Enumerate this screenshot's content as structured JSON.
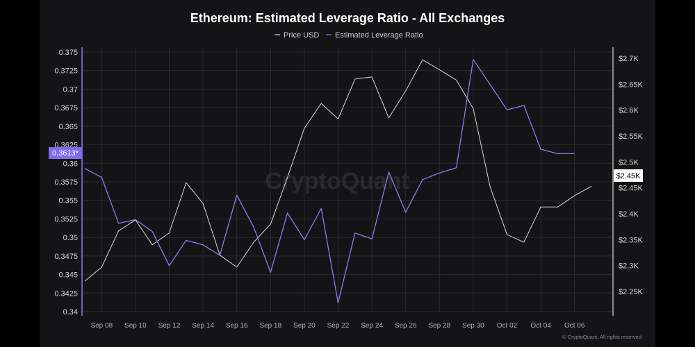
{
  "chart_data": {
    "type": "line",
    "title": "Ethereum: Estimated Leverage Ratio - All Exchanges",
    "watermark": "CryptoQuant",
    "footer": "© CryptoQuant. All rights reserved",
    "legend": [
      {
        "name": "Price USD",
        "color": "#d9d9d9"
      },
      {
        "name": "Estimated Leverage Ratio",
        "color": "#8a7cf0"
      }
    ],
    "x_tick_labels": [
      "Sep 08",
      "Sep 10",
      "Sep 12",
      "Sep 14",
      "Sep 16",
      "Sep 18",
      "Sep 20",
      "Sep 22",
      "Sep 24",
      "Sep 26",
      "Sep 28",
      "Sep 30",
      "Oct 02",
      "Oct 04",
      "Oct 06"
    ],
    "left_axis": {
      "ticks": [
        "0.375",
        "0.3725",
        "0.37",
        "0.3675",
        "0.365",
        "0.3625",
        "0.36",
        "0.3575",
        "0.355",
        "0.3525",
        "0.35",
        "0.3475",
        "0.345",
        "0.3425",
        "0.34"
      ],
      "ylim": [
        0.34,
        0.375
      ],
      "last_value_label": "0.3613*"
    },
    "right_axis": {
      "ticks": [
        "$2.7K",
        "$2.65K",
        "$2.6K",
        "$2.55K",
        "$2.5K",
        "$2.45K",
        "$2.4K",
        "$2.35K",
        "$2.3K",
        "$2.25K"
      ],
      "ylim": [
        2200,
        2700
      ],
      "last_value_label": "$2.45K"
    },
    "series": [
      {
        "name": "Estimated Leverage Ratio",
        "axis": "left",
        "color": "#8a7cf0",
        "x": [
          "Sep 07",
          "Sep 08",
          "Sep 09",
          "Sep 10",
          "Sep 11",
          "Sep 12",
          "Sep 13",
          "Sep 14",
          "Sep 15",
          "Sep 16",
          "Sep 17",
          "Sep 18",
          "Sep 19",
          "Sep 20",
          "Sep 21",
          "Sep 22",
          "Sep 23",
          "Sep 24",
          "Sep 25",
          "Sep 26",
          "Sep 27",
          "Sep 28",
          "Sep 29",
          "Sep 30",
          "Oct 01",
          "Oct 02",
          "Oct 03",
          "Oct 04",
          "Oct 05",
          "Oct 06"
        ],
        "values": [
          0.3593,
          0.3581,
          0.3519,
          0.3524,
          0.3508,
          0.3462,
          0.3496,
          0.349,
          0.3476,
          0.3557,
          0.3514,
          0.3453,
          0.3533,
          0.3497,
          0.3539,
          0.3412,
          0.3506,
          0.3498,
          0.3588,
          0.3534,
          0.3578,
          0.3587,
          0.3594,
          0.374,
          0.3706,
          0.3672,
          0.3678,
          0.3619,
          0.3613,
          0.3613
        ]
      },
      {
        "name": "Price USD",
        "axis": "right",
        "color": "#d9d9d9",
        "x": [
          "Sep 07",
          "Sep 08",
          "Sep 09",
          "Sep 10",
          "Sep 11",
          "Sep 12",
          "Sep 13",
          "Sep 14",
          "Sep 15",
          "Sep 16",
          "Sep 17",
          "Sep 18",
          "Sep 19",
          "Sep 20",
          "Sep 21",
          "Sep 22",
          "Sep 23",
          "Sep 24",
          "Sep 25",
          "Sep 26",
          "Sep 27",
          "Sep 28",
          "Sep 29",
          "Sep 30",
          "Oct 01",
          "Oct 02",
          "Oct 03",
          "Oct 04",
          "Oct 05",
          "Oct 06",
          "Oct 07"
        ],
        "values": [
          2270,
          2297,
          2367,
          2388,
          2340,
          2363,
          2460,
          2420,
          2320,
          2297,
          2345,
          2380,
          2470,
          2565,
          2613,
          2583,
          2660,
          2664,
          2585,
          2637,
          2697,
          2678,
          2658,
          2603,
          2452,
          2360,
          2345,
          2413,
          2413,
          2435,
          2453
        ]
      }
    ]
  }
}
